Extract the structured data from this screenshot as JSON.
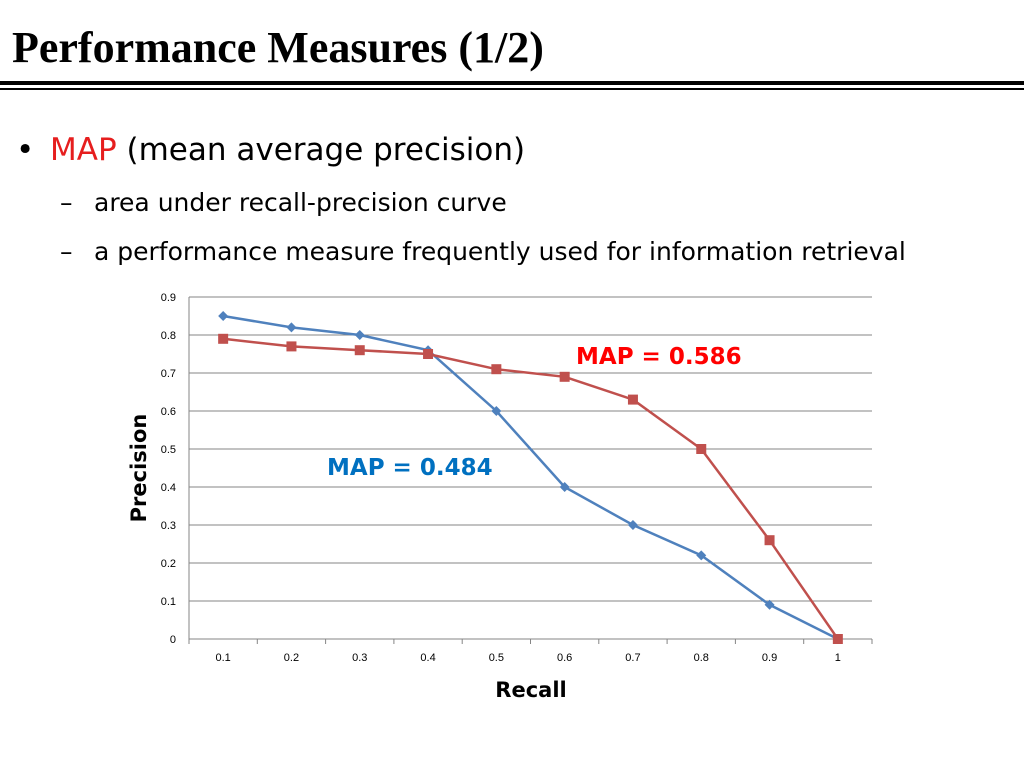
{
  "slide": {
    "title": "Performance Measures (1/2)",
    "bullet": {
      "marker": "•",
      "term": "MAP",
      "rest": " (mean average precision)"
    },
    "subbullets": [
      {
        "marker": "–",
        "text": "area under recall-precision curve"
      },
      {
        "marker": "–",
        "text": "a performance measure frequently used for information retrieval"
      }
    ]
  },
  "chart_data": {
    "type": "line",
    "xlabel": "Recall",
    "ylabel": "Precision",
    "categories": [
      "0.1",
      "0.2",
      "0.3",
      "0.4",
      "0.5",
      "0.6",
      "0.7",
      "0.8",
      "0.9",
      "1"
    ],
    "ylim": [
      0,
      0.9
    ],
    "yticks": [
      "0",
      "0.1",
      "0.2",
      "0.3",
      "0.4",
      "0.5",
      "0.6",
      "0.7",
      "0.8",
      "0.9"
    ],
    "grid": true,
    "series": [
      {
        "color": "#4f81bd",
        "marker": "diamond",
        "values": [
          0.85,
          0.82,
          0.8,
          0.76,
          0.6,
          0.4,
          0.3,
          0.22,
          0.09,
          0.0
        ]
      },
      {
        "color": "#c0504d",
        "marker": "square",
        "values": [
          0.79,
          0.77,
          0.76,
          0.75,
          0.71,
          0.69,
          0.63,
          0.5,
          0.26,
          0.0
        ]
      }
    ],
    "annotations": [
      {
        "text": "MAP = 0.586",
        "color": "#ff0000"
      },
      {
        "text": "MAP = 0.484",
        "color": "#0070c0"
      }
    ]
  }
}
